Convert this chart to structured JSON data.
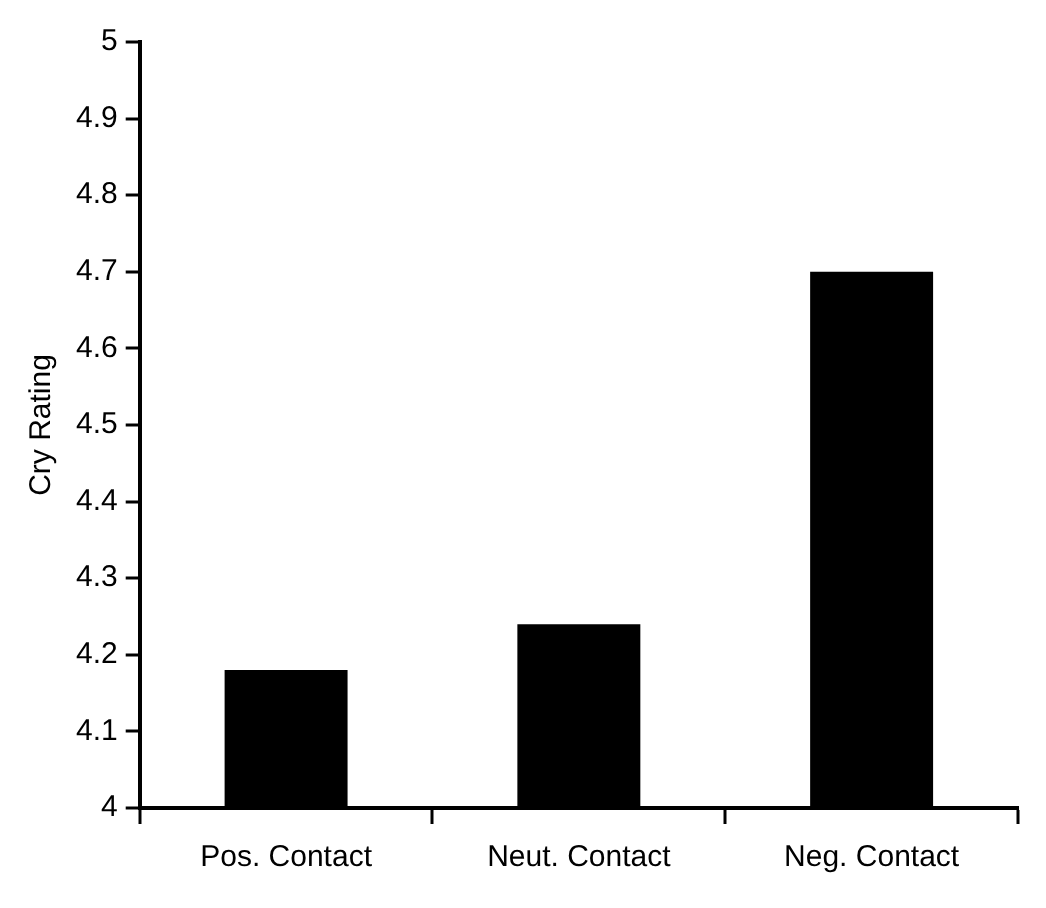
{
  "chart_data": {
    "type": "bar",
    "ylabel": "Cry Rating",
    "categories": [
      "Pos. Contact",
      "Neut. Contact",
      "Neg. Contact"
    ],
    "values": [
      4.18,
      4.24,
      4.7
    ],
    "color": "#000000",
    "ylim": [
      4,
      5
    ],
    "yticks": [
      4,
      4.1,
      4.2,
      4.3,
      4.4,
      4.5,
      4.6,
      4.7,
      4.8,
      4.9,
      5
    ],
    "grid": false,
    "legend": false
  }
}
